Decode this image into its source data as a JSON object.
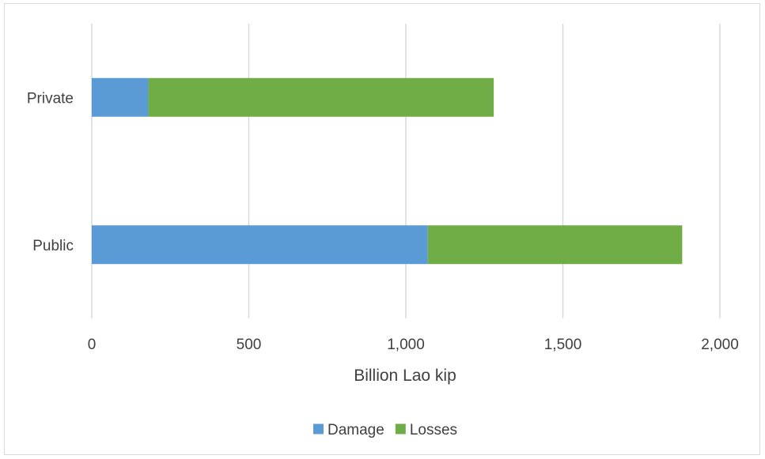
{
  "chart_data": {
    "type": "bar",
    "orientation": "horizontal",
    "stacked": true,
    "categories": [
      "Private",
      "Public"
    ],
    "series": [
      {
        "name": "Damage",
        "values": [
          180,
          1070
        ],
        "color": "#5b9bd5"
      },
      {
        "name": "Losses",
        "values": [
          1100,
          810
        ],
        "color": "#70ad47"
      }
    ],
    "title": "",
    "xlabel": "Billion Lao kip",
    "ylabel": "",
    "xlim": [
      0,
      2000
    ],
    "xticks": [
      0,
      500,
      1000,
      1500,
      2000
    ],
    "xtick_labels": [
      "0",
      "500",
      "1,000",
      "1,500",
      "2,000"
    ],
    "grid": "vertical",
    "gridline_color": "#d9d9d9",
    "legend": "bottom"
  }
}
